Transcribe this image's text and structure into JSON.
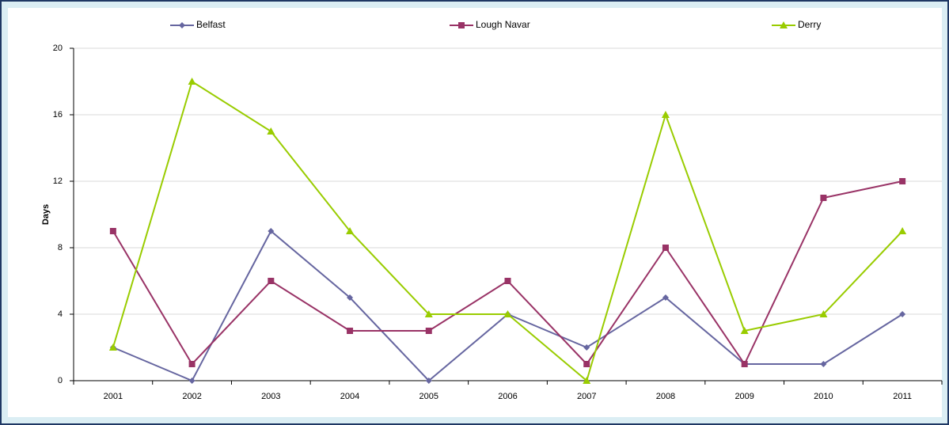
{
  "chart_data": {
    "type": "line",
    "y_label": "Days",
    "categories": [
      "2001",
      "2002",
      "2003",
      "2004",
      "2005",
      "2006",
      "2007",
      "2008",
      "2009",
      "2010",
      "2011"
    ],
    "series": [
      {
        "name": "Belfast",
        "color": "#6666a0",
        "marker": "diamond",
        "values": [
          2,
          0,
          9,
          5,
          0,
          4,
          2,
          5,
          1,
          1,
          4
        ]
      },
      {
        "name": "Lough Navar",
        "color": "#993366",
        "marker": "square",
        "values": [
          9,
          1,
          6,
          3,
          3,
          6,
          1,
          8,
          1,
          11,
          12
        ]
      },
      {
        "name": "Derry",
        "color": "#99cc00",
        "marker": "triangle",
        "values": [
          2,
          18,
          15,
          9,
          4,
          4,
          0,
          16,
          3,
          4,
          9
        ]
      }
    ],
    "ylim": [
      0,
      20
    ],
    "yticks": [
      0,
      4,
      8,
      12,
      16,
      20
    ],
    "grid": true,
    "legend": "top"
  }
}
